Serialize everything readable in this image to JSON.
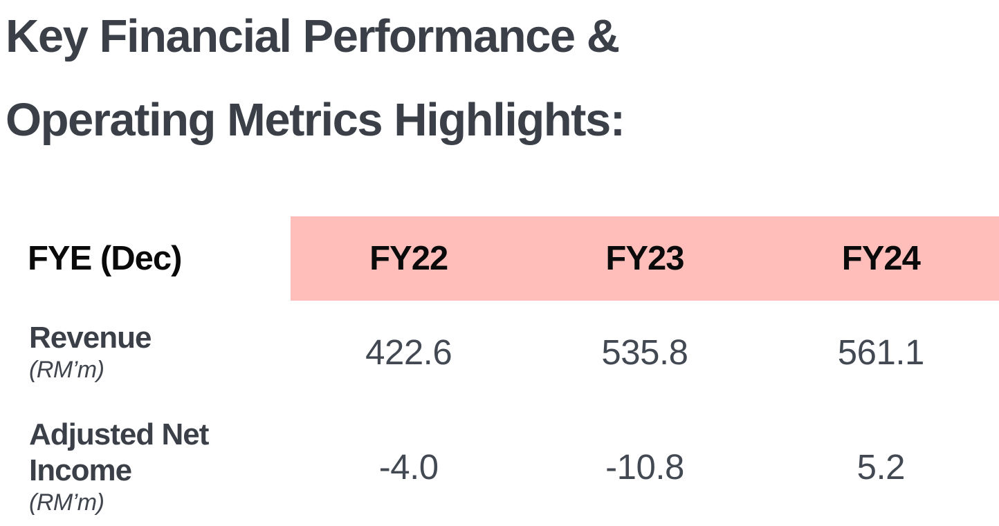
{
  "title": {
    "line1": "Key Financial Performance &",
    "line2": "Operating Metrics Highlights:"
  },
  "table": {
    "header": {
      "label": "FYE (Dec)",
      "columns": [
        "FY22",
        "FY23",
        "FY24"
      ]
    },
    "rows": [
      {
        "name": "Revenue",
        "unit": "(RM’m)",
        "values": [
          "422.6",
          "535.8",
          "561.1"
        ]
      },
      {
        "name": "Adjusted Net Income",
        "unit": "(RM’m)",
        "values": [
          "-4.0",
          "-10.8",
          "5.2"
        ]
      }
    ]
  },
  "colors": {
    "header_pink": "#ffbeba",
    "title_text": "#3a3f48",
    "header_text": "#0a0a0a",
    "value_text": "#434952"
  }
}
